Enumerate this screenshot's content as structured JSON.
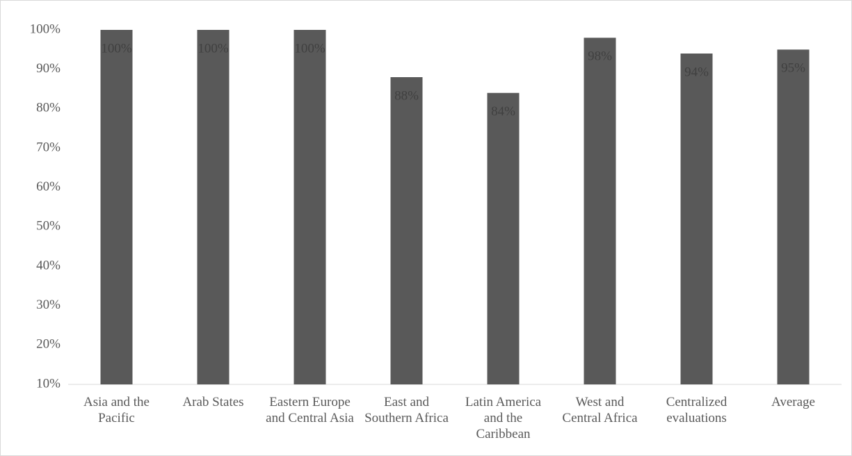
{
  "chart_data": {
    "type": "bar",
    "categories": [
      "Asia and the Pacific",
      "Arab States",
      "Eastern Europe and Central Asia",
      "East and Southern Africa",
      "Latin America and the Caribbean",
      "West and Central Africa",
      "Centralized evaluations",
      "Average"
    ],
    "values": [
      100,
      100,
      100,
      88,
      84,
      98,
      94,
      95
    ],
    "value_labels": [
      "100%",
      "100%",
      "100%",
      "88%",
      "84%",
      "98%",
      "94%",
      "95%"
    ],
    "color": "#595959",
    "ylim": [
      10,
      100
    ],
    "yticks": [
      {
        "value": 10,
        "label": "10%"
      },
      {
        "value": 20,
        "label": "20%"
      },
      {
        "value": 30,
        "label": "30%"
      },
      {
        "value": 40,
        "label": "40%"
      },
      {
        "value": 50,
        "label": "50%"
      },
      {
        "value": 60,
        "label": "60%"
      },
      {
        "value": 70,
        "label": "70%"
      },
      {
        "value": 80,
        "label": "80%"
      },
      {
        "value": 90,
        "label": "90%"
      },
      {
        "value": 100,
        "label": "100%"
      }
    ],
    "grid": false
  }
}
